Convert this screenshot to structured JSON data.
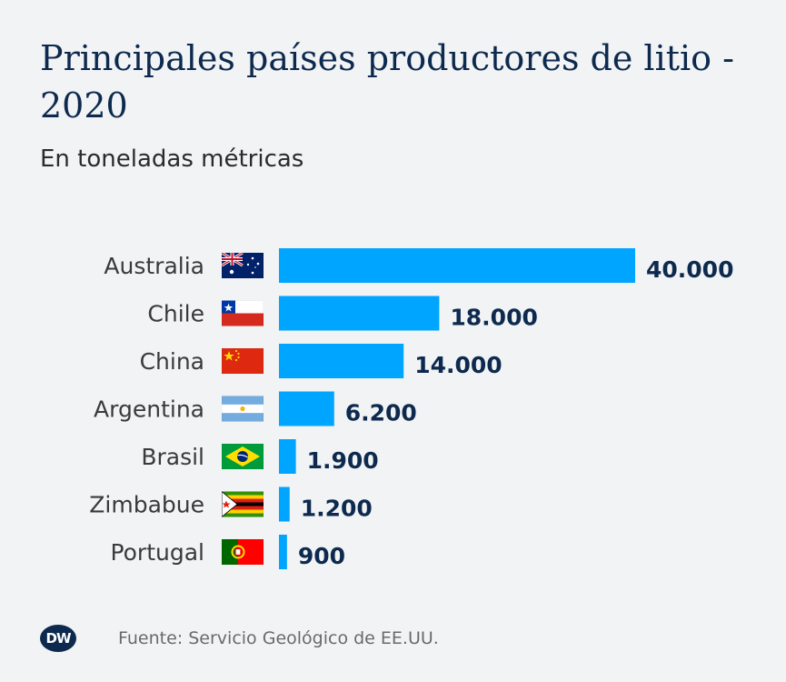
{
  "chart_data": {
    "type": "bar",
    "orientation": "horizontal",
    "title": "Principales países productores de litio - 2020",
    "subtitle": "En toneladas métricas",
    "categories": [
      "Australia",
      "Chile",
      "China",
      "Argentina",
      "Brasil",
      "Zimbabue",
      "Portugal"
    ],
    "values": [
      40000,
      18000,
      14000,
      6200,
      1900,
      1200,
      900
    ],
    "value_labels": [
      "40.000",
      "18.000",
      "14.000",
      "6.200",
      "1.900",
      "1.200",
      "900"
    ],
    "flags": [
      "australia-flag-icon",
      "chile-flag-icon",
      "china-flag-icon",
      "argentina-flag-icon",
      "brazil-flag-icon",
      "zimbabwe-flag-icon",
      "portugal-flag-icon"
    ],
    "xlim": [
      0,
      40000
    ],
    "bar_color": "#00a5ff",
    "grid": false,
    "xlabel": "",
    "ylabel": ""
  },
  "footer": {
    "logo_text": "DW",
    "source": "Fuente: Servicio Geológico de EE.UU."
  },
  "colors": {
    "title": "#0d2a4e",
    "background": "#f1f3f5"
  }
}
